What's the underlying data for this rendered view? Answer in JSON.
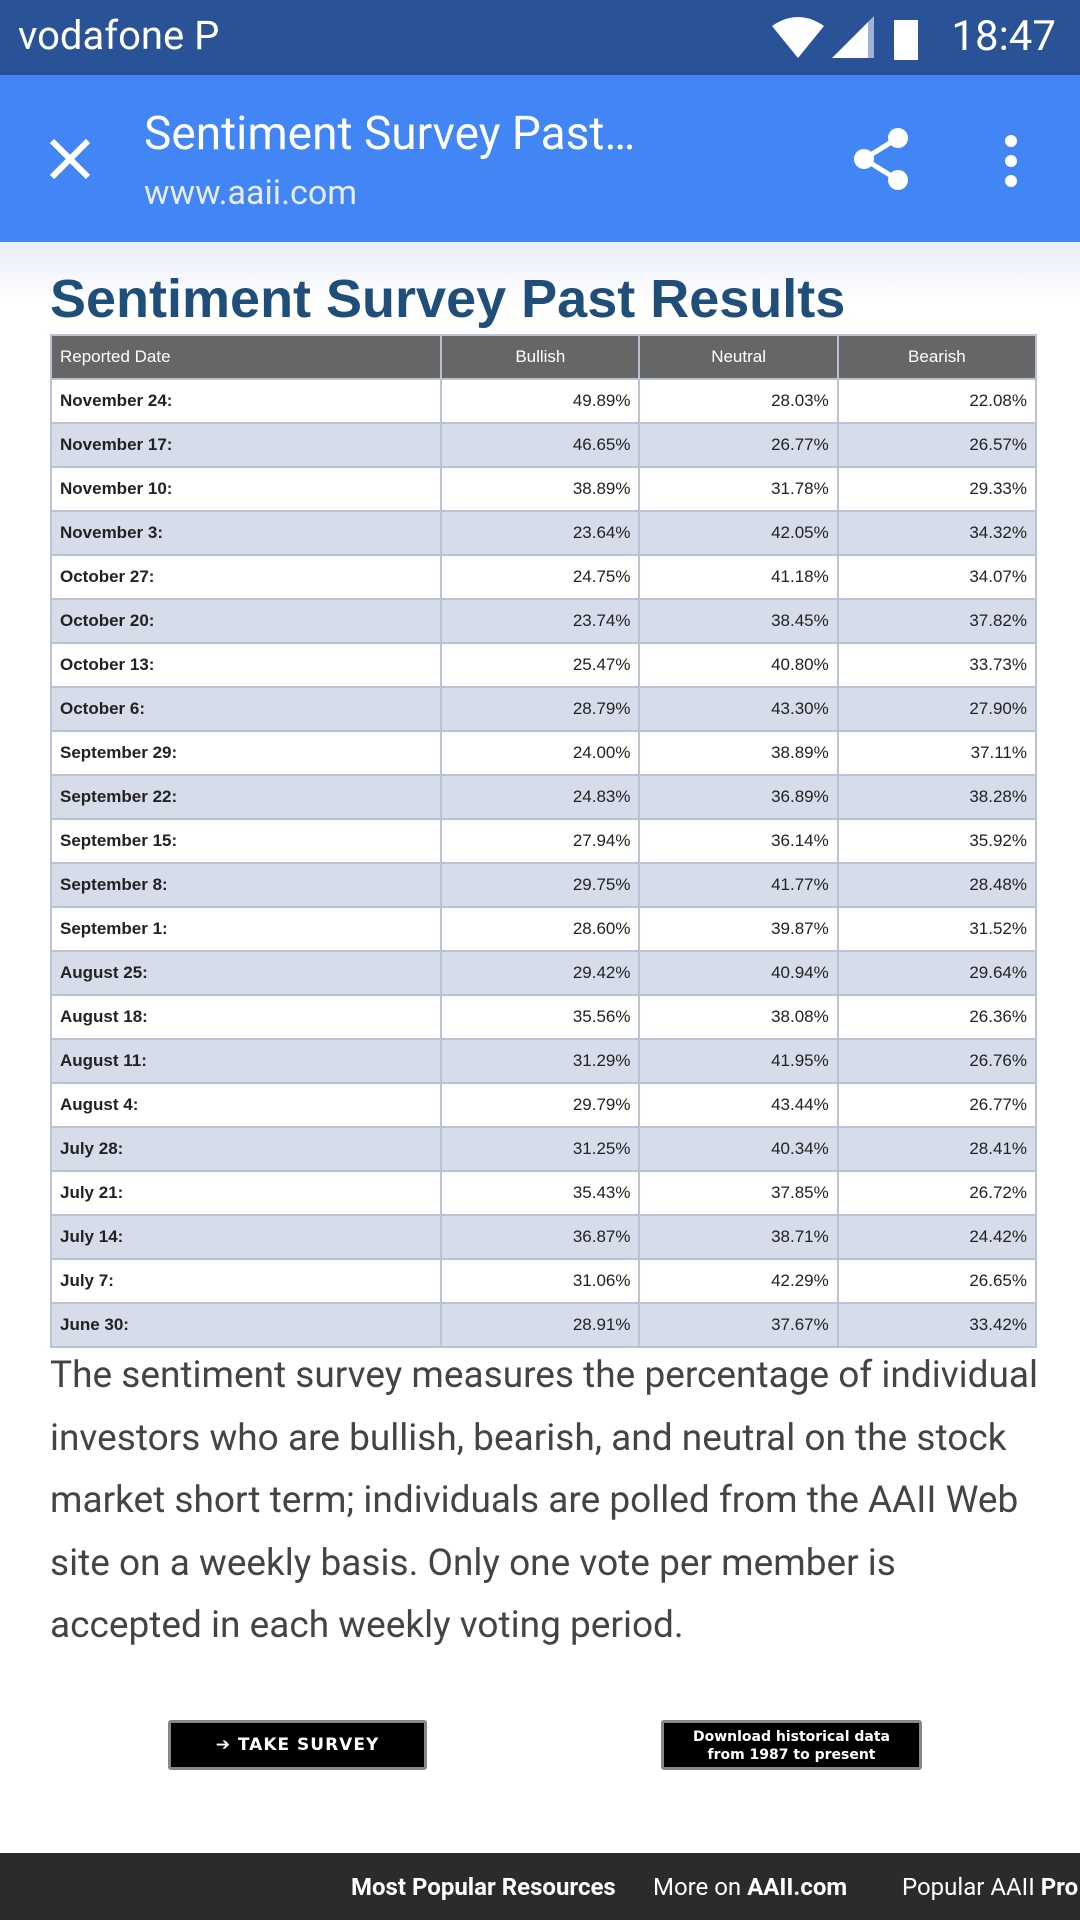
{
  "status_bar": {
    "carrier": "vodafone P",
    "time": "18:47"
  },
  "toolbar": {
    "title": "Sentiment Survey Past…",
    "url": "www.aaii.com"
  },
  "heading": "Sentiment Survey Past Results",
  "table": {
    "header": [
      "Reported Date",
      "Bullish",
      "Neutral",
      "Bearish"
    ],
    "rows": [
      [
        "November 24:",
        "49.89%",
        "28.03%",
        "22.08%"
      ],
      [
        "November 17:",
        "46.65%",
        "26.77%",
        "26.57%"
      ],
      [
        "November 10:",
        "38.89%",
        "31.78%",
        "29.33%"
      ],
      [
        "November 3:",
        "23.64%",
        "42.05%",
        "34.32%"
      ],
      [
        "October 27:",
        "24.75%",
        "41.18%",
        "34.07%"
      ],
      [
        "October 20:",
        "23.74%",
        "38.45%",
        "37.82%"
      ],
      [
        "October 13:",
        "25.47%",
        "40.80%",
        "33.73%"
      ],
      [
        "October 6:",
        "28.79%",
        "43.30%",
        "27.90%"
      ],
      [
        "September 29:",
        "24.00%",
        "38.89%",
        "37.11%"
      ],
      [
        "September 22:",
        "24.83%",
        "36.89%",
        "38.28%"
      ],
      [
        "September 15:",
        "27.94%",
        "36.14%",
        "35.92%"
      ],
      [
        "September 8:",
        "29.75%",
        "41.77%",
        "28.48%"
      ],
      [
        "September 1:",
        "28.60%",
        "39.87%",
        "31.52%"
      ],
      [
        "August 25:",
        "29.42%",
        "40.94%",
        "29.64%"
      ],
      [
        "August 18:",
        "35.56%",
        "38.08%",
        "26.36%"
      ],
      [
        "August 11:",
        "31.29%",
        "41.95%",
        "26.76%"
      ],
      [
        "August 4:",
        "29.79%",
        "43.44%",
        "26.77%"
      ],
      [
        "July 28:",
        "31.25%",
        "40.34%",
        "28.41%"
      ],
      [
        "July 21:",
        "35.43%",
        "37.85%",
        "26.72%"
      ],
      [
        "July 14:",
        "36.87%",
        "38.71%",
        "24.42%"
      ],
      [
        "July 7:",
        "31.06%",
        "42.29%",
        "26.65%"
      ],
      [
        "June 30:",
        "28.91%",
        "37.67%",
        "33.42%"
      ]
    ]
  },
  "description": "The sentiment survey measures the percentage of individual investors who are bullish, bearish, and neutral on the stock market short term; individuals are polled from the AAII Web site on a weekly basis. Only one vote per member is accepted in each weekly voting period.",
  "buttons": {
    "take_survey": "TAKE SURVEY",
    "download": [
      "Download historical data",
      "from 1987 to present"
    ]
  },
  "footer": {
    "popular": "Most Popular Resources",
    "more_on": "More on",
    "site": "AAII.com",
    "popular_pro": "Popular AAII",
    "pro": "Pro"
  }
}
